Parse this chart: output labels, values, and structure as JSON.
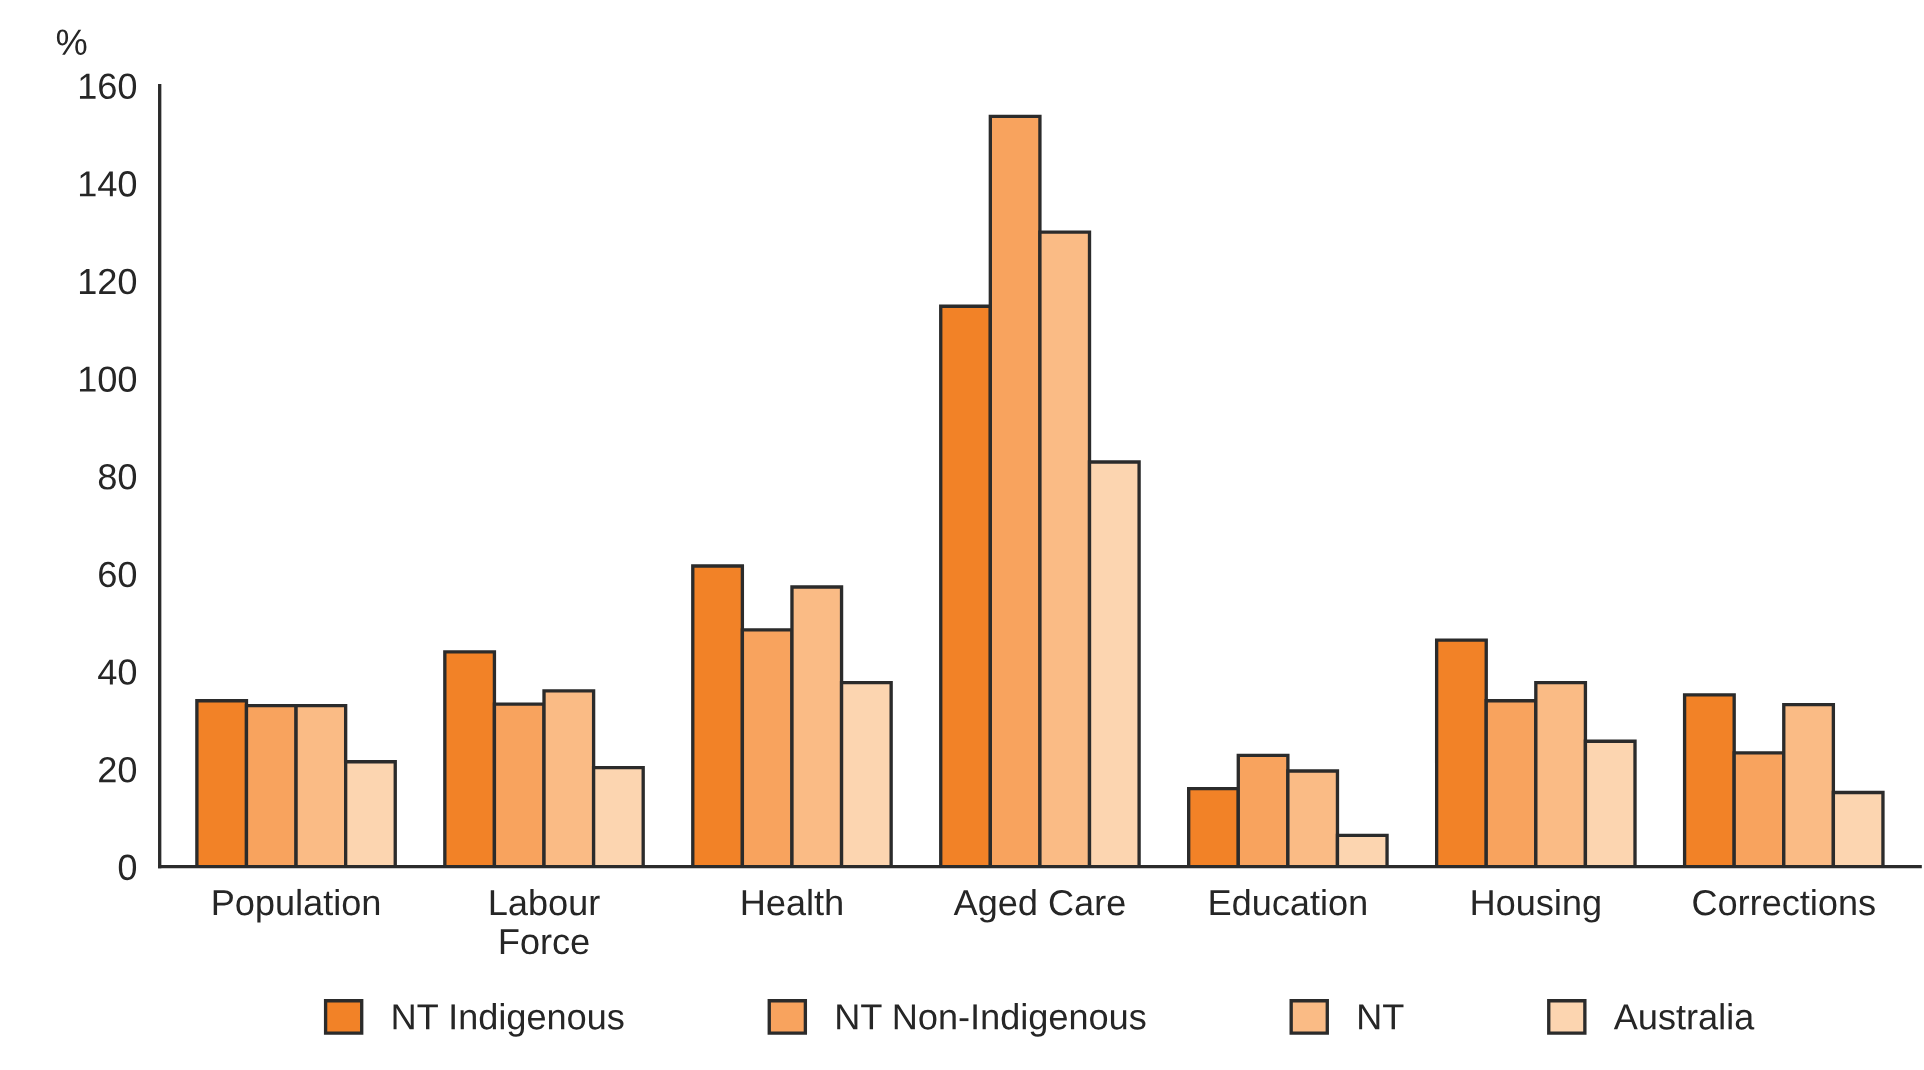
{
  "chart_data": {
    "type": "bar",
    "ylabel": "%",
    "categories": [
      "Population",
      "Labour\nForce",
      "Health",
      "Aged Care",
      "Education",
      "Housing",
      "Corrections"
    ],
    "series": [
      {
        "name": "NT Indigenous",
        "color": "#f28227",
        "values": [
          34,
          44,
          61.6,
          114.8,
          16,
          46.4,
          35.2
        ]
      },
      {
        "name": "NT Non-Indigenous",
        "color": "#f8a35e",
        "values": [
          33,
          33.3,
          48.5,
          153.7,
          22.8,
          34,
          23.3
        ]
      },
      {
        "name": "NT",
        "color": "#fabb85",
        "values": [
          33,
          36,
          57.3,
          130,
          19.6,
          37.7,
          33.2
        ]
      },
      {
        "name": "Australia",
        "color": "#fcd5b0",
        "values": [
          21.5,
          20.3,
          37.7,
          82.9,
          6.4,
          25.7,
          15.2
        ]
      }
    ],
    "ylim": [
      0,
      160
    ],
    "yticks": [
      0,
      20,
      40,
      60,
      80,
      100,
      120,
      140,
      160
    ],
    "grid": false,
    "legend": "bottom"
  }
}
